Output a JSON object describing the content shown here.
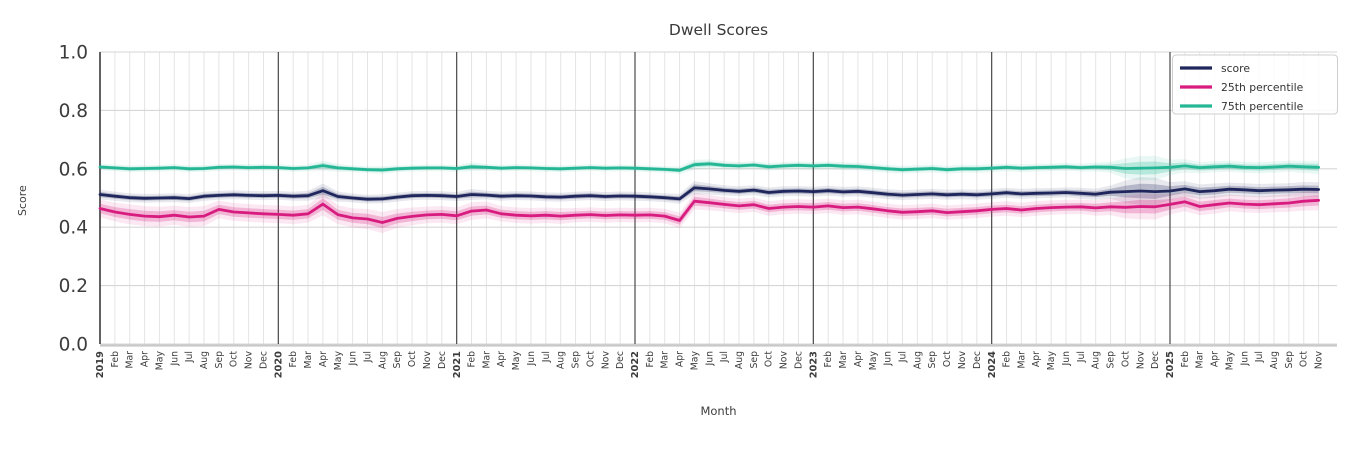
{
  "chart_data": {
    "type": "line",
    "title": "Dwell Scores",
    "xlabel": "Month",
    "ylabel": "Score",
    "ylim": [
      0.0,
      1.0
    ],
    "yticks": [
      0.0,
      0.2,
      0.4,
      0.6,
      0.8,
      1.0
    ],
    "grid": true,
    "legend_position": "upper right",
    "x_tick_labels": [
      "2019",
      "Feb",
      "Mar",
      "Apr",
      "May",
      "Jun",
      "Jul",
      "Aug",
      "Sep",
      "Oct",
      "Nov",
      "Dec",
      "2020",
      "Feb",
      "Mar",
      "Apr",
      "May",
      "Jun",
      "Jul",
      "Aug",
      "Sep",
      "Oct",
      "Nov",
      "Dec",
      "2021",
      "Feb",
      "Mar",
      "Apr",
      "May",
      "Jun",
      "Jul",
      "Aug",
      "Sep",
      "Oct",
      "Nov",
      "Dec",
      "2022",
      "Feb",
      "Mar",
      "Apr",
      "May",
      "Jun",
      "Jul",
      "Aug",
      "Sep",
      "Oct",
      "Nov",
      "Dec",
      "2023",
      "Feb",
      "Mar",
      "Apr",
      "May",
      "Jun",
      "Jul",
      "Aug",
      "Sep",
      "Oct",
      "Nov",
      "Dec",
      "2024",
      "Feb",
      "Mar",
      "Apr",
      "May",
      "Jun",
      "Jul",
      "Aug",
      "Sep",
      "Oct",
      "Nov",
      "Dec",
      "2025",
      "Feb",
      "Mar",
      "Apr",
      "May",
      "Jun",
      "Jul",
      "Aug",
      "Sep",
      "Oct",
      "Nov"
    ],
    "year_line_indices": [
      0,
      12,
      24,
      36,
      48,
      60,
      72
    ],
    "series": [
      {
        "name": "score",
        "color": "#1f265c",
        "values": [
          0.512,
          0.506,
          0.501,
          0.499,
          0.5,
          0.501,
          0.498,
          0.506,
          0.509,
          0.511,
          0.509,
          0.508,
          0.509,
          0.506,
          0.508,
          0.525,
          0.505,
          0.5,
          0.496,
          0.497,
          0.503,
          0.508,
          0.509,
          0.508,
          0.505,
          0.512,
          0.51,
          0.506,
          0.508,
          0.507,
          0.504,
          0.503,
          0.506,
          0.508,
          0.505,
          0.507,
          0.506,
          0.504,
          0.501,
          0.497,
          0.535,
          0.531,
          0.526,
          0.523,
          0.527,
          0.519,
          0.523,
          0.524,
          0.522,
          0.525,
          0.521,
          0.523,
          0.518,
          0.513,
          0.51,
          0.512,
          0.514,
          0.511,
          0.513,
          0.511,
          0.514,
          0.518,
          0.514,
          0.516,
          0.517,
          0.519,
          0.516,
          0.513,
          0.52,
          0.522,
          0.524,
          0.522,
          0.524,
          0.531,
          0.522,
          0.525,
          0.53,
          0.528,
          0.525,
          0.527,
          0.528,
          0.53,
          0.529
        ],
        "ci": [
          0.009,
          0.008,
          0.008,
          0.008,
          0.008,
          0.008,
          0.008,
          0.008,
          0.008,
          0.008,
          0.008,
          0.008,
          0.008,
          0.008,
          0.009,
          0.013,
          0.009,
          0.008,
          0.008,
          0.008,
          0.008,
          0.008,
          0.008,
          0.008,
          0.008,
          0.01,
          0.008,
          0.008,
          0.008,
          0.008,
          0.008,
          0.008,
          0.008,
          0.008,
          0.008,
          0.008,
          0.008,
          0.008,
          0.008,
          0.009,
          0.012,
          0.01,
          0.009,
          0.009,
          0.009,
          0.009,
          0.009,
          0.009,
          0.009,
          0.009,
          0.009,
          0.009,
          0.009,
          0.009,
          0.009,
          0.009,
          0.009,
          0.009,
          0.009,
          0.009,
          0.009,
          0.009,
          0.009,
          0.009,
          0.009,
          0.009,
          0.01,
          0.01,
          0.012,
          0.02,
          0.025,
          0.025,
          0.016,
          0.014,
          0.013,
          0.013,
          0.012,
          0.012,
          0.012,
          0.012,
          0.012,
          0.013,
          0.013
        ]
      },
      {
        "name": "25th percentile",
        "color": "#d81b7f",
        "values": [
          0.464,
          0.452,
          0.444,
          0.438,
          0.436,
          0.441,
          0.435,
          0.438,
          0.461,
          0.452,
          0.449,
          0.446,
          0.444,
          0.441,
          0.446,
          0.479,
          0.443,
          0.432,
          0.428,
          0.416,
          0.43,
          0.437,
          0.442,
          0.444,
          0.439,
          0.455,
          0.459,
          0.446,
          0.441,
          0.439,
          0.441,
          0.438,
          0.441,
          0.443,
          0.44,
          0.442,
          0.441,
          0.442,
          0.438,
          0.423,
          0.489,
          0.484,
          0.478,
          0.473,
          0.477,
          0.464,
          0.469,
          0.471,
          0.469,
          0.473,
          0.467,
          0.469,
          0.463,
          0.456,
          0.451,
          0.453,
          0.456,
          0.45,
          0.453,
          0.456,
          0.461,
          0.464,
          0.459,
          0.464,
          0.467,
          0.469,
          0.47,
          0.466,
          0.47,
          0.468,
          0.471,
          0.47,
          0.478,
          0.487,
          0.471,
          0.477,
          0.483,
          0.479,
          0.477,
          0.48,
          0.483,
          0.489,
          0.492
        ],
        "ci": [
          0.016,
          0.017,
          0.018,
          0.018,
          0.018,
          0.017,
          0.018,
          0.018,
          0.016,
          0.016,
          0.016,
          0.016,
          0.016,
          0.016,
          0.016,
          0.02,
          0.017,
          0.017,
          0.018,
          0.019,
          0.017,
          0.016,
          0.015,
          0.015,
          0.015,
          0.016,
          0.015,
          0.014,
          0.014,
          0.014,
          0.014,
          0.014,
          0.013,
          0.013,
          0.013,
          0.013,
          0.013,
          0.013,
          0.013,
          0.014,
          0.015,
          0.014,
          0.013,
          0.013,
          0.013,
          0.013,
          0.013,
          0.013,
          0.013,
          0.013,
          0.013,
          0.013,
          0.013,
          0.013,
          0.013,
          0.013,
          0.013,
          0.013,
          0.013,
          0.013,
          0.013,
          0.013,
          0.013,
          0.013,
          0.013,
          0.013,
          0.013,
          0.014,
          0.015,
          0.02,
          0.023,
          0.023,
          0.018,
          0.017,
          0.016,
          0.016,
          0.015,
          0.015,
          0.015,
          0.015,
          0.016,
          0.017,
          0.018
        ]
      },
      {
        "name": "75th percentile",
        "color": "#25b795",
        "values": [
          0.606,
          0.603,
          0.6,
          0.601,
          0.602,
          0.604,
          0.6,
          0.601,
          0.605,
          0.606,
          0.604,
          0.605,
          0.604,
          0.601,
          0.603,
          0.611,
          0.603,
          0.6,
          0.597,
          0.596,
          0.6,
          0.602,
          0.603,
          0.603,
          0.601,
          0.607,
          0.605,
          0.602,
          0.604,
          0.603,
          0.601,
          0.6,
          0.602,
          0.604,
          0.602,
          0.603,
          0.602,
          0.6,
          0.598,
          0.595,
          0.614,
          0.617,
          0.612,
          0.61,
          0.613,
          0.607,
          0.61,
          0.612,
          0.61,
          0.612,
          0.609,
          0.608,
          0.604,
          0.6,
          0.597,
          0.599,
          0.601,
          0.597,
          0.6,
          0.6,
          0.602,
          0.605,
          0.602,
          0.604,
          0.605,
          0.607,
          0.604,
          0.606,
          0.605,
          0.601,
          0.602,
          0.603,
          0.605,
          0.61,
          0.604,
          0.607,
          0.609,
          0.605,
          0.604,
          0.606,
          0.609,
          0.607,
          0.605
        ],
        "ci": [
          0.006,
          0.006,
          0.006,
          0.006,
          0.006,
          0.006,
          0.006,
          0.006,
          0.006,
          0.006,
          0.006,
          0.006,
          0.006,
          0.006,
          0.006,
          0.009,
          0.007,
          0.006,
          0.006,
          0.007,
          0.006,
          0.006,
          0.006,
          0.006,
          0.006,
          0.008,
          0.006,
          0.006,
          0.006,
          0.006,
          0.006,
          0.006,
          0.006,
          0.006,
          0.006,
          0.006,
          0.006,
          0.006,
          0.006,
          0.007,
          0.009,
          0.008,
          0.007,
          0.007,
          0.007,
          0.007,
          0.007,
          0.007,
          0.007,
          0.007,
          0.007,
          0.007,
          0.007,
          0.007,
          0.007,
          0.007,
          0.007,
          0.007,
          0.007,
          0.007,
          0.007,
          0.007,
          0.007,
          0.007,
          0.007,
          0.007,
          0.007,
          0.008,
          0.01,
          0.018,
          0.022,
          0.022,
          0.014,
          0.012,
          0.01,
          0.01,
          0.01,
          0.01,
          0.01,
          0.01,
          0.01,
          0.011,
          0.012
        ]
      }
    ],
    "colors": {
      "grid_minor": "#e4e4e4",
      "grid_major": "#d6d6d6",
      "year_line": "#4a4a4a",
      "spine_left": "#3a3a3a",
      "spine_bottom": "#c9c9c9",
      "tick_text": "#3c3c3c",
      "legend_border": "#cfcfcf"
    }
  }
}
